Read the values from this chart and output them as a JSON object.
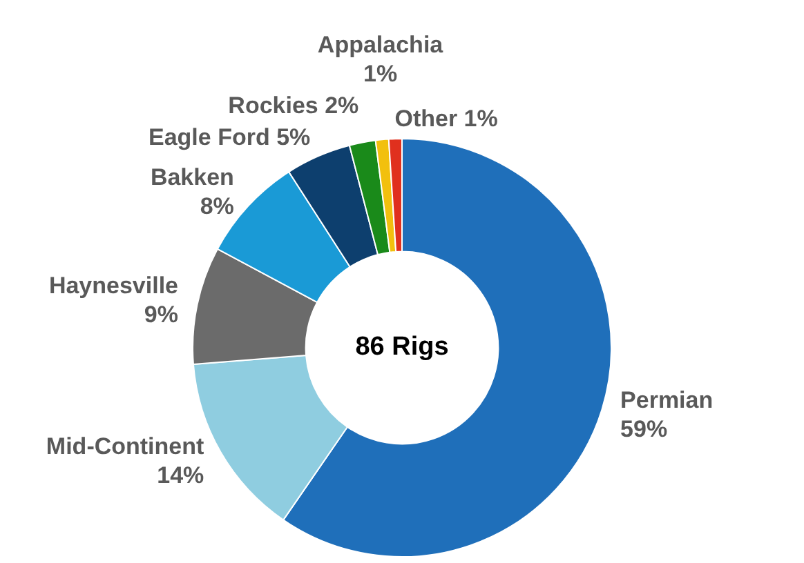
{
  "chart_data": {
    "type": "donut",
    "categories": [
      "Permian",
      "Mid-Continent",
      "Haynesville",
      "Bakken",
      "Eagle Ford",
      "Rockies",
      "Appalachia",
      "Other"
    ],
    "values": [
      59,
      14,
      9,
      8,
      5,
      2,
      1,
      1
    ],
    "value_labels": [
      "59%",
      "14%",
      "9%",
      "8%",
      "5%",
      "2%",
      "1%",
      "1%"
    ],
    "colors": [
      "#1f6fba",
      "#8fcde0",
      "#6b6b6b",
      "#1a9ad6",
      "#0d3f6e",
      "#1a8a1a",
      "#f2c00e",
      "#e0301e"
    ],
    "annotations": [
      "86 Rigs"
    ],
    "legend": false
  }
}
